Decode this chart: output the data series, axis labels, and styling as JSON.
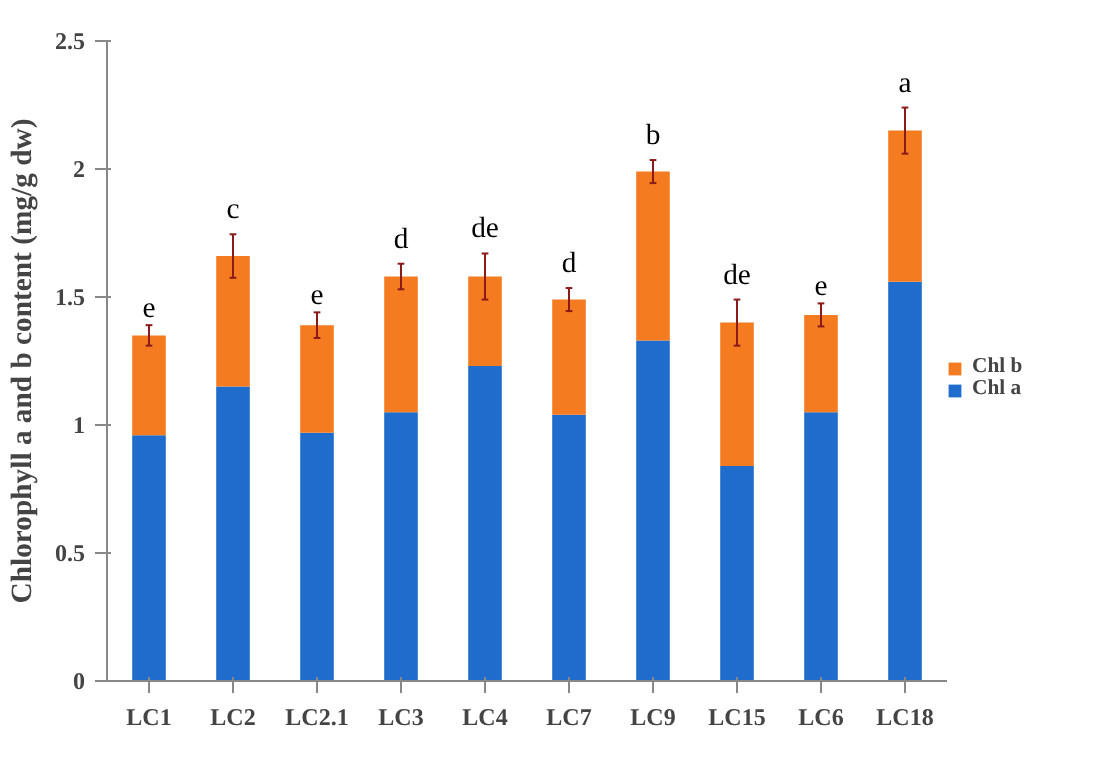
{
  "chart_data": {
    "type": "bar",
    "stacked": true,
    "ylabel": "Chlorophyll a and b content (mg/g dw)",
    "categories": [
      "LC1",
      "LC2",
      "LC2.1",
      "LC3",
      "LC4",
      "LC7",
      "LC9",
      "LC15",
      "LC6",
      "LC18"
    ],
    "series": [
      {
        "name": "Chl a",
        "color": "#1f6ccc",
        "values": [
          0.96,
          1.15,
          0.97,
          1.05,
          1.23,
          1.04,
          1.33,
          0.84,
          1.05,
          1.56
        ]
      },
      {
        "name": "Chl b",
        "color": "#f47b20",
        "values": [
          0.39,
          0.51,
          0.42,
          0.53,
          0.35,
          0.45,
          0.66,
          0.56,
          0.38,
          0.59
        ],
        "errors": [
          0.04,
          0.085,
          0.05,
          0.05,
          0.09,
          0.045,
          0.045,
          0.09,
          0.045,
          0.09
        ]
      }
    ],
    "ylim": [
      0,
      2.5
    ],
    "yticks": [
      0,
      0.5,
      1,
      1.5,
      2,
      2.5
    ],
    "grid": false,
    "legend": "right",
    "annotations": [
      {
        "text": "e",
        "x": "LC1",
        "y": 1.35
      },
      {
        "text": "c",
        "x": "LC2",
        "y": 1.66
      },
      {
        "text": "e",
        "x": "LC2.1",
        "y": 1.39
      },
      {
        "text": "d",
        "x": "LC3",
        "y": 1.58
      },
      {
        "text": "de",
        "x": "LC4",
        "y": 1.58
      },
      {
        "text": "d",
        "x": "LC7",
        "y": 1.49
      },
      {
        "text": "b",
        "x": "LC9",
        "y": 1.99
      },
      {
        "text": "de",
        "x": "LC15",
        "y": 1.4
      },
      {
        "text": "e",
        "x": "LC6",
        "y": 1.43
      },
      {
        "text": "a",
        "x": "LC18",
        "y": 2.15
      }
    ]
  }
}
